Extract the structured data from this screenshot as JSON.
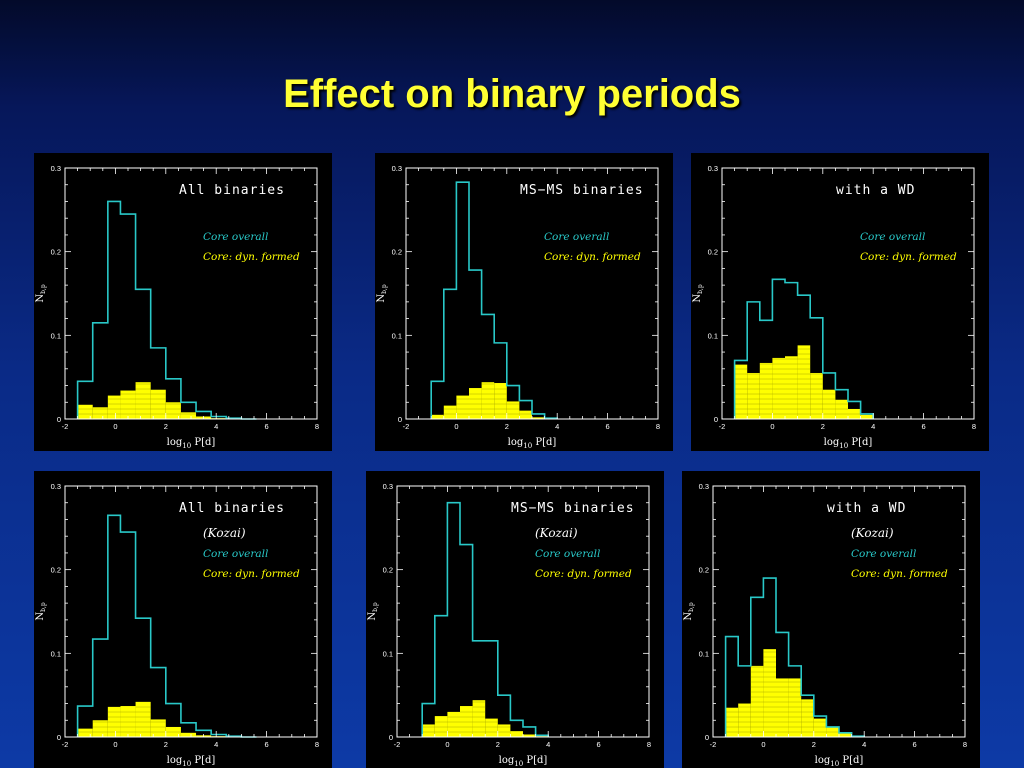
{
  "slide": {
    "title": "Effect on binary periods"
  },
  "colors": {
    "overall": "#29c8c8",
    "dyn": "#ffff00",
    "frame": "#ffffff"
  },
  "labels": {
    "overall": "Core overall",
    "dyn": "Core: dyn. formed",
    "x_log": "log",
    "x_sub": "10",
    "x_rest": " P[d]",
    "y_main": "N",
    "y_sub": "b,p",
    "kozai": "(Kozai)"
  },
  "chart_data": [
    {
      "type": "histogram",
      "title": "All binaries",
      "subtitle": "",
      "xlabel": "log10 P[d]",
      "ylabel": "Nb,p",
      "xlim": [
        -2,
        8
      ],
      "ylim": [
        0,
        0.3
      ],
      "xticks": [
        -2,
        0,
        2,
        4,
        6,
        8
      ],
      "yticks": [
        0,
        0.1,
        0.2,
        0.3
      ],
      "bin_edges": [
        -1.5,
        -0.9,
        -0.3,
        0.2,
        0.8,
        1.4,
        2.0,
        2.6,
        3.2,
        3.8,
        4.4,
        5.0,
        5.6
      ],
      "series": [
        {
          "name": "Core overall",
          "values": [
            0.045,
            0.115,
            0.26,
            0.245,
            0.155,
            0.085,
            0.048,
            0.02,
            0.009,
            0.003,
            0.001,
            0.0
          ]
        },
        {
          "name": "Core: dyn. formed",
          "values": [
            0.017,
            0.014,
            0.028,
            0.034,
            0.044,
            0.035,
            0.02,
            0.008,
            0.003,
            0.001,
            0.0,
            0.0
          ]
        }
      ]
    },
    {
      "type": "histogram",
      "title": "MS−MS binaries",
      "subtitle": "",
      "xlabel": "log10 P[d]",
      "ylabel": "Nb,p",
      "xlim": [
        -2,
        8
      ],
      "ylim": [
        0,
        0.3
      ],
      "xticks": [
        -2,
        0,
        2,
        4,
        6,
        8
      ],
      "yticks": [
        0,
        0.1,
        0.2,
        0.3
      ],
      "bin_edges": [
        -1.0,
        -0.5,
        0.0,
        0.5,
        1.0,
        1.5,
        2.0,
        2.5,
        3.0,
        3.5,
        4.0
      ],
      "series": [
        {
          "name": "Core overall",
          "values": [
            0.045,
            0.155,
            0.283,
            0.178,
            0.125,
            0.091,
            0.04,
            0.022,
            0.006,
            0.001
          ]
        },
        {
          "name": "Core: dyn. formed",
          "values": [
            0.005,
            0.016,
            0.028,
            0.037,
            0.044,
            0.043,
            0.021,
            0.01,
            0.002,
            0.0
          ]
        }
      ]
    },
    {
      "type": "histogram",
      "title": "with a WD",
      "subtitle": "",
      "xlabel": "log10 P[d]",
      "ylabel": "Nb,p",
      "xlim": [
        -2,
        8
      ],
      "ylim": [
        0,
        0.3
      ],
      "xticks": [
        -2,
        0,
        2,
        4,
        6,
        8
      ],
      "yticks": [
        0,
        0.1,
        0.2,
        0.3
      ],
      "bin_edges": [
        -1.5,
        -1.0,
        -0.5,
        0.0,
        0.5,
        1.0,
        1.5,
        2.0,
        2.5,
        3.0,
        3.5,
        4.0
      ],
      "series": [
        {
          "name": "Core overall",
          "values": [
            0.07,
            0.14,
            0.118,
            0.167,
            0.163,
            0.148,
            0.121,
            0.055,
            0.035,
            0.021,
            0.006
          ]
        },
        {
          "name": "Core: dyn. formed",
          "values": [
            0.065,
            0.055,
            0.067,
            0.073,
            0.075,
            0.088,
            0.055,
            0.035,
            0.023,
            0.012,
            0.005
          ]
        }
      ]
    },
    {
      "type": "histogram",
      "title": "All binaries",
      "subtitle": "(Kozai)",
      "xlabel": "log10 P[d]",
      "ylabel": "Nb,p",
      "xlim": [
        -2,
        8
      ],
      "ylim": [
        0,
        0.3
      ],
      "xticks": [
        -2,
        0,
        2,
        4,
        6,
        8
      ],
      "yticks": [
        0,
        0.1,
        0.2,
        0.3
      ],
      "bin_edges": [
        -1.5,
        -0.9,
        -0.3,
        0.2,
        0.8,
        1.4,
        2.0,
        2.6,
        3.2,
        3.8,
        4.4,
        5.0,
        5.6
      ],
      "series": [
        {
          "name": "Core overall",
          "values": [
            0.037,
            0.117,
            0.265,
            0.245,
            0.142,
            0.083,
            0.04,
            0.017,
            0.008,
            0.003,
            0.001,
            0.0
          ]
        },
        {
          "name": "Core: dyn. formed",
          "values": [
            0.01,
            0.02,
            0.036,
            0.037,
            0.042,
            0.021,
            0.012,
            0.005,
            0.002,
            0.001,
            0.0,
            0.0
          ]
        }
      ]
    },
    {
      "type": "histogram",
      "title": "MS−MS binaries",
      "subtitle": "(Kozai)",
      "xlabel": "log10 P[d]",
      "ylabel": "Nb,p",
      "xlim": [
        -2,
        8
      ],
      "ylim": [
        0,
        0.3
      ],
      "xticks": [
        -2,
        0,
        2,
        4,
        6,
        8
      ],
      "yticks": [
        0,
        0.1,
        0.2,
        0.3
      ],
      "bin_edges": [
        -1.0,
        -0.5,
        0.0,
        0.5,
        1.0,
        1.5,
        2.0,
        2.5,
        3.0,
        3.5,
        4.0
      ],
      "series": [
        {
          "name": "Core overall",
          "values": [
            0.04,
            0.145,
            0.28,
            0.23,
            0.115,
            0.115,
            0.05,
            0.02,
            0.012,
            0.002
          ]
        },
        {
          "name": "Core: dyn. formed",
          "values": [
            0.015,
            0.025,
            0.03,
            0.037,
            0.044,
            0.022,
            0.015,
            0.007,
            0.003,
            0.001
          ]
        }
      ]
    },
    {
      "type": "histogram",
      "title": "with a WD",
      "subtitle": "(Kozai)",
      "xlabel": "log10 P[d]",
      "ylabel": "Nb,p",
      "xlim": [
        -2,
        8
      ],
      "ylim": [
        0,
        0.3
      ],
      "xticks": [
        -2,
        0,
        2,
        4,
        6,
        8
      ],
      "yticks": [
        0,
        0.1,
        0.2,
        0.3
      ],
      "bin_edges": [
        -1.5,
        -1.0,
        -0.5,
        0.0,
        0.5,
        1.0,
        1.5,
        2.0,
        2.5,
        3.0,
        3.5,
        4.0
      ],
      "series": [
        {
          "name": "Core overall",
          "values": [
            0.12,
            0.085,
            0.167,
            0.19,
            0.125,
            0.085,
            0.05,
            0.025,
            0.012,
            0.005,
            0.001
          ]
        },
        {
          "name": "Core: dyn. formed",
          "values": [
            0.035,
            0.04,
            0.085,
            0.105,
            0.07,
            0.07,
            0.045,
            0.022,
            0.012,
            0.005,
            0.001
          ]
        }
      ]
    }
  ]
}
